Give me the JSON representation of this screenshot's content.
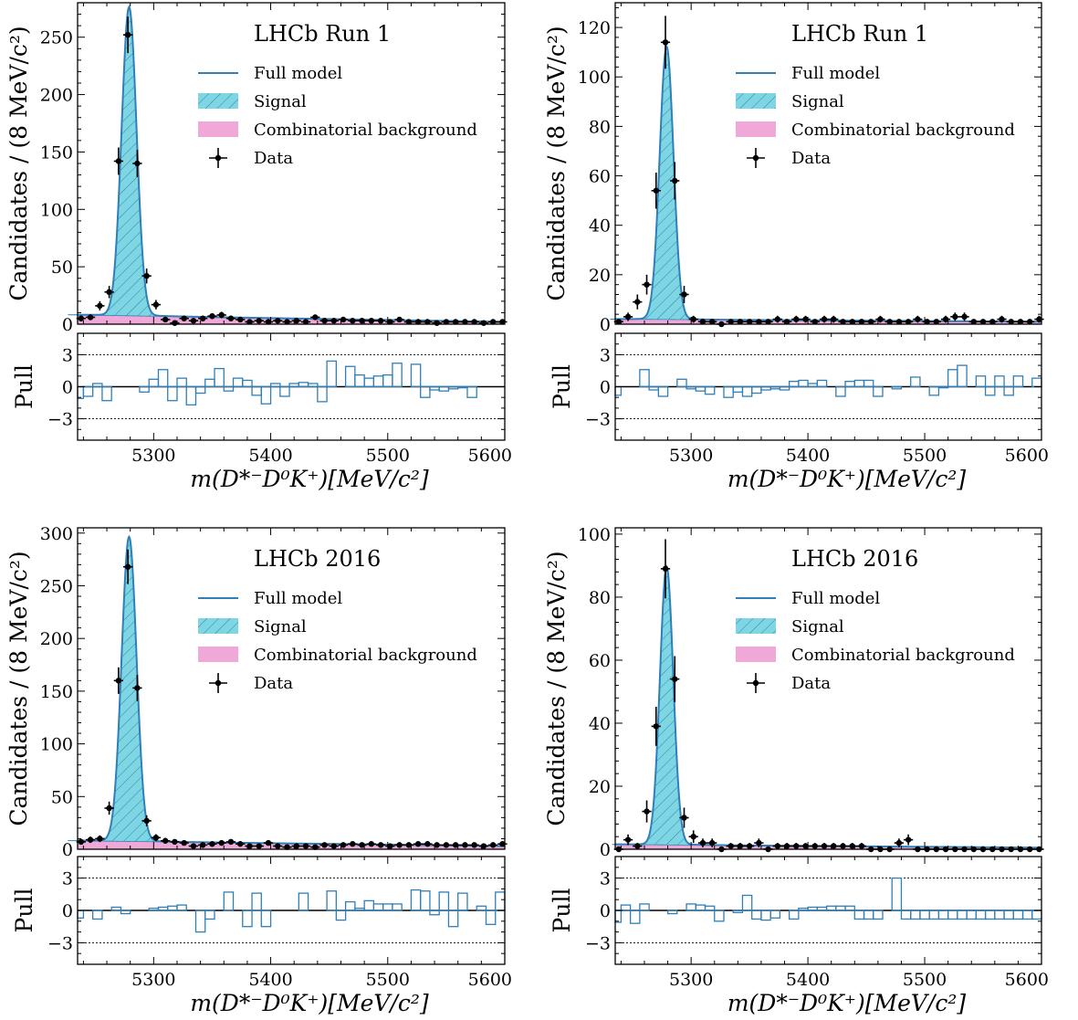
{
  "figure": {
    "colors": {
      "model": "#2f7fb8",
      "signal_fill": "#7fd6e3",
      "signal_hatch": "#2f7fb8",
      "background": "#f0a8d8",
      "data": "#000000",
      "pull_bar": "#2f7fb8"
    }
  },
  "chart_data": [
    {
      "type": "line",
      "title": "LHCb Run 1",
      "ylabel": "Candidates / (8 MeV/c²)",
      "xlabel": "m(D*⁻D⁰K⁺)[MeV/c²]",
      "pull_label": "Pull",
      "xlim": [
        5235,
        5600
      ],
      "ylim": [
        0,
        280
      ],
      "pull_ylim": [
        -5,
        5
      ],
      "xticks": [
        5300,
        5400,
        5500,
        5600
      ],
      "yticks": [
        0,
        50,
        100,
        150,
        200,
        250
      ],
      "pull_yticks": [
        -3,
        0,
        3
      ],
      "legend": [
        "Full model",
        "Signal",
        "Combinatorial background",
        "Data"
      ],
      "legend_position": "top-right",
      "model": {
        "peak": 268,
        "mean": 5279,
        "sigma": 6.5
      },
      "background": {
        "start": 8,
        "end": 2
      },
      "data_x": [
        5238,
        5246,
        5254,
        5262,
        5270,
        5278,
        5286,
        5294,
        5302,
        5310,
        5318,
        5326,
        5334,
        5342,
        5350,
        5358,
        5366,
        5374,
        5382,
        5390,
        5398,
        5406,
        5414,
        5422,
        5430,
        5438,
        5446,
        5454,
        5462,
        5470,
        5478,
        5486,
        5494,
        5502,
        5510,
        5518,
        5526,
        5534,
        5542,
        5550,
        5558,
        5566,
        5574,
        5582,
        5590,
        5598
      ],
      "data_y": [
        5,
        6,
        16,
        28,
        142,
        252,
        140,
        42,
        17,
        4,
        1,
        5,
        3,
        5,
        7,
        8,
        5,
        4,
        2,
        3,
        2,
        3,
        2,
        3,
        2,
        6,
        3,
        3,
        4,
        3,
        3,
        3,
        3,
        2,
        4,
        2,
        2,
        2,
        1,
        2,
        2,
        2,
        2,
        1,
        2,
        2
      ],
      "data_err": [
        2.5,
        2.5,
        4.0,
        5.3,
        11.9,
        15.9,
        11.8,
        6.5,
        4.1,
        2.0,
        1.0,
        2.2,
        1.7,
        2.2,
        2.6,
        2.8,
        2.2,
        2.0,
        1.4,
        1.7,
        1.4,
        1.7,
        1.4,
        1.7,
        1.4,
        2.4,
        1.7,
        1.7,
        2.0,
        1.7,
        1.7,
        1.7,
        1.7,
        1.4,
        2.0,
        1.4,
        1.4,
        1.4,
        1.0,
        1.4,
        1.4,
        1.4,
        1.4,
        1.0,
        1.4,
        1.4
      ],
      "pull_x": [
        5236,
        5244,
        5252,
        5260,
        5268,
        5276,
        5284,
        5292,
        5300,
        5308,
        5316,
        5324,
        5332,
        5340,
        5348,
        5356,
        5364,
        5372,
        5380,
        5388,
        5396,
        5404,
        5412,
        5420,
        5428,
        5436,
        5444,
        5452,
        5460,
        5468,
        5476,
        5484,
        5492,
        5500,
        5508,
        5516,
        5524,
        5532,
        5540,
        5548,
        5556,
        5564,
        5572,
        5580,
        5588,
        5596
      ],
      "pull_values": [
        -1.1,
        -0.9,
        0.3,
        -1.3,
        0.0,
        0.0,
        0.0,
        -0.5,
        0.7,
        1.6,
        -1.3,
        0.8,
        -1.7,
        -0.6,
        0.7,
        1.7,
        -0.4,
        0.8,
        0.6,
        -0.8,
        -1.6,
        0.3,
        -0.9,
        0.3,
        0.4,
        0.3,
        -1.4,
        2.4,
        0.0,
        1.9,
        1.1,
        0.8,
        1.0,
        1.1,
        2.2,
        0.0,
        2.1,
        -1.0,
        -0.3,
        -0.4,
        -0.2,
        -0.1,
        -1.0,
        0.0,
        0.0,
        0.0
      ]
    },
    {
      "type": "line",
      "title": "LHCb Run 1",
      "ylabel": "Candidates / (8 MeV/c²)",
      "xlabel": "m(D*⁻D⁰K⁺)[MeV/c²]",
      "pull_label": "Pull",
      "xlim": [
        5235,
        5600
      ],
      "ylim": [
        0,
        130
      ],
      "pull_ylim": [
        -5,
        5
      ],
      "xticks": [
        5300,
        5400,
        5500,
        5600
      ],
      "yticks": [
        0,
        20,
        40,
        60,
        80,
        100,
        120
      ],
      "pull_yticks": [
        -3,
        0,
        3
      ],
      "legend": [
        "Full model",
        "Signal",
        "Combinatorial background",
        "Data"
      ],
      "legend_position": "top-right",
      "model": {
        "peak": 110,
        "mean": 5279,
        "sigma": 6.0
      },
      "background": {
        "start": 2,
        "end": 1
      },
      "data_x": [
        5238,
        5246,
        5254,
        5262,
        5270,
        5278,
        5286,
        5294,
        5302,
        5310,
        5318,
        5326,
        5334,
        5342,
        5350,
        5358,
        5366,
        5374,
        5382,
        5390,
        5398,
        5406,
        5414,
        5422,
        5430,
        5438,
        5446,
        5454,
        5462,
        5470,
        5478,
        5486,
        5494,
        5502,
        5510,
        5518,
        5526,
        5534,
        5542,
        5550,
        5558,
        5566,
        5574,
        5582,
        5590,
        5598
      ],
      "data_y": [
        1,
        3,
        9,
        16,
        54,
        114,
        58,
        12,
        2,
        1,
        1,
        0,
        1,
        1,
        1,
        1,
        1,
        2,
        1,
        2,
        2,
        1,
        2,
        2,
        1,
        1,
        1,
        1,
        2,
        1,
        1,
        1,
        2,
        1,
        1,
        2,
        3,
        3,
        1,
        1,
        1,
        2,
        1,
        1,
        1,
        2
      ],
      "data_err": [
        1.0,
        1.7,
        3.0,
        4.0,
        7.3,
        10.7,
        7.6,
        3.5,
        1.4,
        1.0,
        1.0,
        0.5,
        1.0,
        1.0,
        1.0,
        1.0,
        1.0,
        1.4,
        1.0,
        1.4,
        1.4,
        1.0,
        1.4,
        1.4,
        1.0,
        1.0,
        1.0,
        1.0,
        1.4,
        1.0,
        1.0,
        1.0,
        1.4,
        1.0,
        1.0,
        1.4,
        1.7,
        1.7,
        1.0,
        1.0,
        1.0,
        1.4,
        1.0,
        1.0,
        1.0,
        1.4
      ],
      "pull_x": [
        5236,
        5244,
        5252,
        5260,
        5268,
        5276,
        5284,
        5292,
        5300,
        5308,
        5316,
        5324,
        5332,
        5340,
        5348,
        5356,
        5364,
        5372,
        5380,
        5388,
        5396,
        5404,
        5412,
        5420,
        5428,
        5436,
        5444,
        5452,
        5460,
        5468,
        5476,
        5484,
        5492,
        5500,
        5508,
        5516,
        5524,
        5532,
        5540,
        5548,
        5556,
        5564,
        5572,
        5580,
        5588,
        5596
      ],
      "pull_values": [
        -0.8,
        0.0,
        0.0,
        1.6,
        -0.3,
        -0.9,
        0.0,
        0.7,
        -0.2,
        -0.4,
        -0.7,
        0.0,
        -1.0,
        -0.5,
        -0.9,
        -0.6,
        -0.3,
        -0.2,
        -0.3,
        0.5,
        0.6,
        0.3,
        0.6,
        0.0,
        -0.9,
        0.5,
        0.6,
        0.6,
        -0.9,
        0.0,
        -0.2,
        0.0,
        0.9,
        0.0,
        -0.8,
        -0.1,
        1.6,
        2.0,
        0.0,
        1.0,
        -0.8,
        1.0,
        -0.8,
        1.0,
        0.0,
        0.8
      ]
    },
    {
      "type": "line",
      "title": "LHCb 2016",
      "ylabel": "Candidates / (8 MeV/c²)",
      "xlabel": "m(D*⁻D⁰K⁺)[MeV/c²]",
      "pull_label": "Pull",
      "xlim": [
        5235,
        5600
      ],
      "ylim": [
        0,
        305
      ],
      "pull_ylim": [
        -5,
        5
      ],
      "xticks": [
        5300,
        5400,
        5500,
        5600
      ],
      "yticks": [
        0,
        50,
        100,
        150,
        200,
        250,
        300
      ],
      "pull_yticks": [
        -3,
        0,
        3
      ],
      "legend": [
        "Full model",
        "Signal",
        "Combinatorial background",
        "Data"
      ],
      "legend_position": "top-right",
      "model": {
        "peak": 288,
        "mean": 5279,
        "sigma": 6.5
      },
      "background": {
        "start": 8,
        "end": 3
      },
      "data_x": [
        5238,
        5246,
        5254,
        5262,
        5270,
        5278,
        5286,
        5294,
        5302,
        5310,
        5318,
        5326,
        5334,
        5342,
        5350,
        5358,
        5366,
        5374,
        5382,
        5390,
        5398,
        5406,
        5414,
        5422,
        5430,
        5438,
        5446,
        5454,
        5462,
        5470,
        5478,
        5486,
        5494,
        5502,
        5510,
        5518,
        5526,
        5534,
        5542,
        5550,
        5558,
        5566,
        5574,
        5582,
        5590,
        5598
      ],
      "data_y": [
        7,
        9,
        10,
        39,
        160,
        268,
        153,
        27,
        11,
        8,
        7,
        6,
        3,
        4,
        5,
        6,
        7,
        5,
        3,
        3,
        6,
        3,
        2,
        3,
        3,
        2,
        4,
        3,
        4,
        5,
        4,
        5,
        4,
        3,
        4,
        4,
        5,
        5,
        4,
        4,
        4,
        4,
        4,
        3,
        4,
        5
      ],
      "data_err": [
        2.6,
        3.0,
        3.2,
        6.2,
        12.6,
        16.4,
        12.4,
        5.2,
        3.3,
        2.8,
        2.6,
        2.4,
        1.7,
        2.0,
        2.2,
        2.4,
        2.6,
        2.2,
        1.7,
        1.7,
        2.4,
        1.7,
        1.4,
        1.7,
        1.7,
        1.4,
        2.0,
        1.7,
        2.0,
        2.2,
        2.0,
        2.2,
        2.0,
        1.7,
        2.0,
        2.0,
        2.2,
        2.2,
        2.0,
        2.0,
        2.0,
        2.0,
        2.0,
        1.7,
        2.0,
        2.2
      ],
      "pull_x": [
        5236,
        5244,
        5252,
        5260,
        5268,
        5276,
        5284,
        5292,
        5300,
        5308,
        5316,
        5324,
        5332,
        5340,
        5348,
        5356,
        5364,
        5372,
        5380,
        5388,
        5396,
        5404,
        5412,
        5420,
        5428,
        5436,
        5444,
        5452,
        5460,
        5468,
        5476,
        5484,
        5492,
        5500,
        5508,
        5516,
        5524,
        5532,
        5540,
        5548,
        5556,
        5564,
        5572,
        5580,
        5588,
        5596
      ],
      "pull_values": [
        -0.7,
        0.0,
        -0.8,
        0.0,
        0.3,
        -0.3,
        0.0,
        0.0,
        0.2,
        0.3,
        0.4,
        0.5,
        0.0,
        -2.0,
        -0.8,
        0.0,
        1.7,
        0.0,
        -1.5,
        1.6,
        -1.5,
        0.0,
        0.0,
        0.0,
        1.6,
        0.0,
        0.0,
        1.8,
        -0.9,
        0.8,
        0.2,
        0.9,
        0.6,
        0.6,
        0.6,
        0.0,
        1.9,
        1.8,
        -0.4,
        1.7,
        -1.5,
        1.6,
        0.0,
        0.4,
        -1.3,
        1.7
      ]
    },
    {
      "type": "line",
      "title": "LHCb 2016",
      "ylabel": "Candidates / (8 MeV/c²)",
      "xlabel": "m(D*⁻D⁰K⁺)[MeV/c²]",
      "pull_label": "Pull",
      "xlim": [
        5235,
        5600
      ],
      "ylim": [
        0,
        102
      ],
      "pull_ylim": [
        -5,
        5
      ],
      "xticks": [
        5300,
        5400,
        5500,
        5600
      ],
      "yticks": [
        0,
        20,
        40,
        60,
        80,
        100
      ],
      "pull_yticks": [
        -3,
        0,
        3
      ],
      "legend": [
        "Full model",
        "Signal",
        "Combinatorial background",
        "Data"
      ],
      "legend_position": "top-right",
      "model": {
        "peak": 88,
        "mean": 5279,
        "sigma": 5.8
      },
      "background": {
        "start": 1.5,
        "end": 0.5
      },
      "data_x": [
        5238,
        5246,
        5254,
        5262,
        5270,
        5278,
        5286,
        5294,
        5302,
        5310,
        5318,
        5326,
        5334,
        5342,
        5350,
        5358,
        5366,
        5374,
        5382,
        5390,
        5398,
        5406,
        5414,
        5422,
        5430,
        5438,
        5446,
        5454,
        5462,
        5470,
        5478,
        5486,
        5494,
        5502,
        5510,
        5518,
        5526,
        5534,
        5542,
        5550,
        5558,
        5566,
        5574,
        5582,
        5590,
        5598
      ],
      "data_y": [
        0,
        3,
        1,
        12,
        39,
        89,
        54,
        10,
        4,
        2,
        2,
        0,
        1,
        1,
        1,
        2,
        0,
        1,
        1,
        1,
        1,
        1,
        1,
        1,
        1,
        1,
        1,
        0,
        0,
        0,
        2,
        3,
        0,
        0,
        0,
        0,
        0,
        0,
        0,
        0,
        0,
        0,
        0,
        0,
        0,
        0
      ],
      "data_err": [
        0.5,
        1.7,
        1.0,
        3.5,
        6.2,
        9.4,
        7.3,
        3.2,
        2.0,
        1.4,
        1.4,
        0.5,
        1.0,
        1.0,
        1.0,
        1.4,
        0.5,
        1.0,
        1.0,
        1.0,
        1.0,
        1.0,
        1.0,
        1.0,
        1.0,
        1.0,
        1.0,
        0.5,
        0.5,
        0.5,
        1.4,
        1.7,
        0.5,
        0.5,
        0.5,
        0.5,
        0.5,
        0.5,
        0.5,
        0.5,
        0.5,
        0.5,
        0.5,
        0.5,
        0.5,
        0.5
      ],
      "pull_x": [
        5236,
        5244,
        5252,
        5260,
        5268,
        5276,
        5284,
        5292,
        5300,
        5308,
        5316,
        5324,
        5332,
        5340,
        5348,
        5356,
        5364,
        5372,
        5380,
        5388,
        5396,
        5404,
        5412,
        5420,
        5428,
        5436,
        5444,
        5452,
        5460,
        5468,
        5476,
        5484,
        5492,
        5500,
        5508,
        5516,
        5524,
        5532,
        5540,
        5548,
        5556,
        5564,
        5572,
        5580,
        5588,
        5596
      ],
      "pull_values": [
        -1.1,
        0.5,
        -1.2,
        0.6,
        0.0,
        0.0,
        -0.3,
        0.0,
        0.6,
        0.5,
        0.4,
        -1.0,
        0.0,
        -0.2,
        1.4,
        -0.8,
        -0.9,
        -0.7,
        0.0,
        -0.8,
        0.2,
        0.3,
        0.3,
        0.4,
        0.4,
        0.4,
        -0.8,
        -0.8,
        -0.8,
        0.0,
        3.0,
        -0.8,
        -0.8,
        -0.8,
        -0.8,
        -0.8,
        -0.8,
        -0.8,
        -0.8,
        -0.8,
        -0.8,
        -0.8,
        -0.8,
        -0.8,
        -0.8,
        -0.8
      ]
    }
  ]
}
